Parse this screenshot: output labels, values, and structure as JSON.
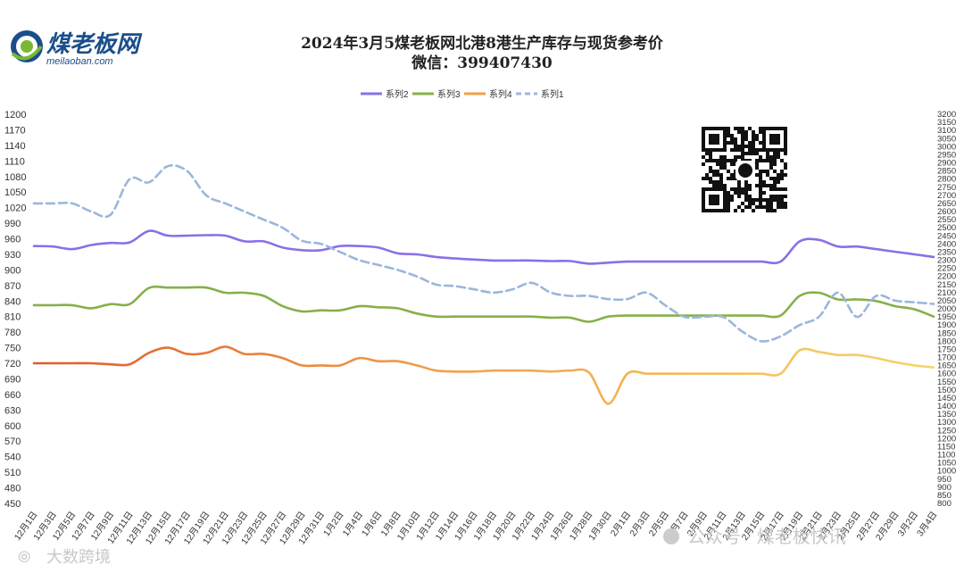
{
  "header": {
    "logo_text": "煤老板网",
    "logo_url_text": "meilaoban.com",
    "title": "2024年3月5煤老板网北港8港生产库存与现货参考价",
    "subtitle": "微信：399407430"
  },
  "watermarks": {
    "left": "大数跨境",
    "right": "公众号 · 煤老板快讯"
  },
  "colors": {
    "series2": "#8b6fe8",
    "series3": "#86b04a",
    "series4_start": "#e05a2a",
    "series4_mid": "#f0a04a",
    "series4_end": "#f6d56a",
    "series1": "#9ab7dc"
  },
  "chart_data": {
    "type": "line",
    "x": [
      "12月1日",
      "12月3日",
      "12月5日",
      "12月7日",
      "12月9日",
      "12月11日",
      "12月13日",
      "12月15日",
      "12月17日",
      "12月19日",
      "12月21日",
      "12月23日",
      "12月25日",
      "12月27日",
      "12月29日",
      "12月31日",
      "1月2日",
      "1月4日",
      "1月6日",
      "1月8日",
      "1月10日",
      "1月12日",
      "1月14日",
      "1月16日",
      "1月18日",
      "1月20日",
      "1月22日",
      "1月24日",
      "1月26日",
      "1月28日",
      "1月30日",
      "2月1日",
      "2月3日",
      "2月5日",
      "2月7日",
      "2月9日",
      "2月11日",
      "2月13日",
      "2月15日",
      "2月17日",
      "2月19日",
      "2月21日",
      "2月23日",
      "2月25日",
      "2月27日",
      "2月29日",
      "3月2日",
      "3月4日"
    ],
    "y_left": {
      "min": 450,
      "max": 1200,
      "step": 30
    },
    "y_right": {
      "min": 800,
      "max": 3200,
      "step": 50
    },
    "legend_placement": "top-center",
    "grid": false,
    "series": [
      {
        "name": "系列2",
        "axis": "left",
        "style": "solid",
        "values": [
          946,
          945,
          940,
          948,
          952,
          953,
          975,
          966,
          966,
          967,
          966,
          955,
          955,
          943,
          938,
          938,
          946,
          946,
          943,
          932,
          930,
          925,
          922,
          920,
          918,
          918,
          918,
          917,
          917,
          912,
          914,
          916,
          916,
          916,
          916,
          916,
          916,
          916,
          916,
          916,
          955,
          958,
          945,
          945,
          940,
          935,
          930,
          925
        ]
      },
      {
        "name": "系列3",
        "axis": "left",
        "style": "solid",
        "values": [
          832,
          832,
          832,
          826,
          834,
          834,
          865,
          866,
          866,
          866,
          856,
          856,
          850,
          830,
          820,
          822,
          822,
          830,
          828,
          826,
          816,
          810,
          810,
          810,
          810,
          810,
          810,
          808,
          808,
          800,
          810,
          812,
          812,
          812,
          812,
          812,
          812,
          812,
          812,
          812,
          850,
          856,
          843,
          843,
          840,
          830,
          824,
          810
        ]
      },
      {
        "name": "系列4",
        "axis": "left",
        "style": "solid",
        "values": [
          720,
          720,
          720,
          720,
          718,
          718,
          740,
          750,
          738,
          740,
          752,
          738,
          738,
          730,
          716,
          716,
          716,
          730,
          724,
          724,
          716,
          706,
          704,
          704,
          706,
          706,
          706,
          704,
          706,
          702,
          642,
          700,
          700,
          700,
          700,
          700,
          700,
          700,
          700,
          700,
          745,
          742,
          736,
          736,
          730,
          722,
          716,
          712
        ]
      },
      {
        "name": "系列1",
        "axis": "right",
        "style": "dashed",
        "values": [
          2650,
          2650,
          2650,
          2600,
          2580,
          2800,
          2780,
          2880,
          2850,
          2700,
          2650,
          2600,
          2550,
          2500,
          2420,
          2400,
          2350,
          2300,
          2270,
          2240,
          2200,
          2150,
          2140,
          2120,
          2100,
          2120,
          2160,
          2100,
          2080,
          2080,
          2060,
          2060,
          2100,
          2020,
          1950,
          1950,
          1950,
          1860,
          1800,
          1830,
          1900,
          1950,
          2100,
          1950,
          2080,
          2050,
          2040,
          2030
        ]
      }
    ]
  }
}
